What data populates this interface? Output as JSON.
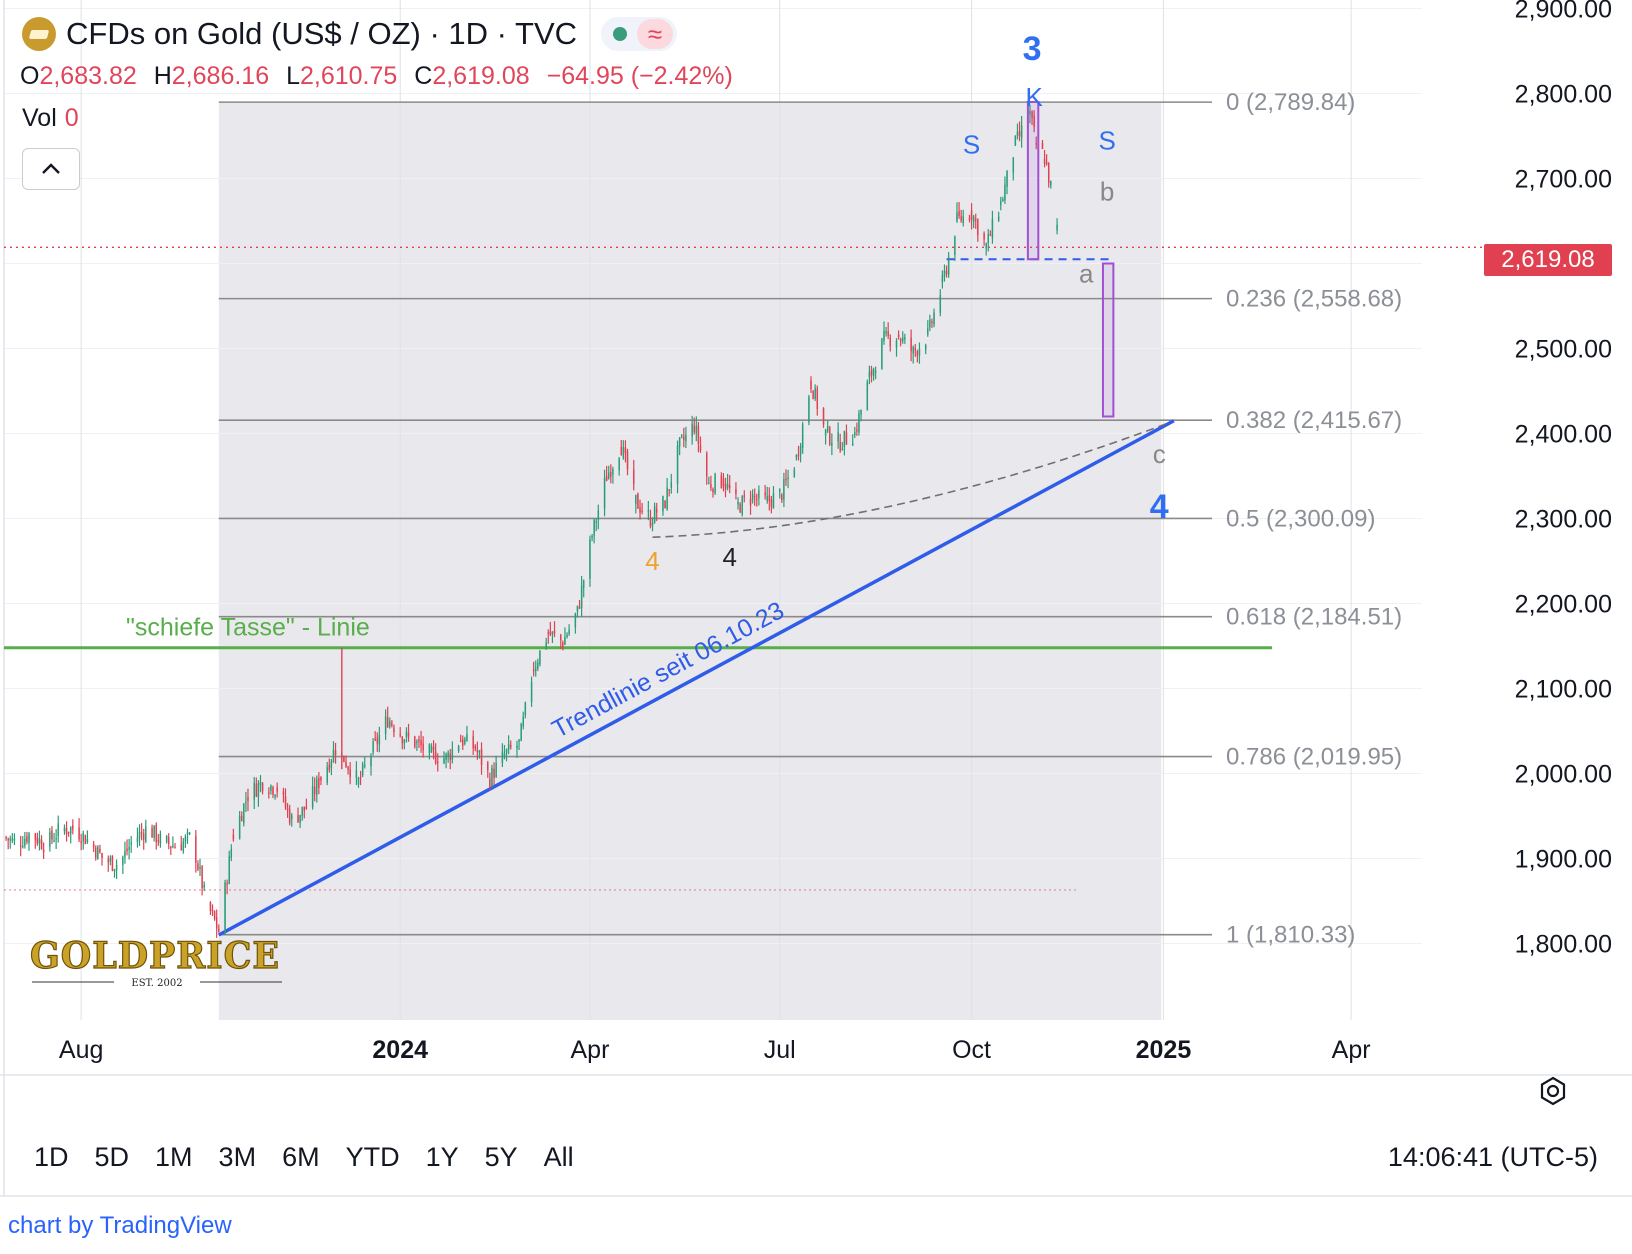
{
  "header": {
    "title": "CFDs on Gold (US$ / OZ) · 1D · TVC",
    "ohlc": [
      {
        "key": "O",
        "value": "2,683.82"
      },
      {
        "key": "H",
        "value": "2,686.16"
      },
      {
        "key": "L",
        "value": "2,610.75"
      },
      {
        "key": "C",
        "value": "2,619.08"
      }
    ],
    "change": "−64.95 (−2.42%)",
    "vol_label": "Vol",
    "vol_value": "0",
    "icons": [
      "gold-logo-icon",
      "status-dot-icon",
      "wave-icon",
      "chevron-up-icon"
    ]
  },
  "price_tag": "2,619.08",
  "ranges": [
    "1D",
    "5D",
    "1M",
    "3M",
    "6M",
    "YTD",
    "1Y",
    "5Y",
    "All"
  ],
  "clock": "14:06:41 (UTC-5)",
  "credit": {
    "prefix": "chart by ",
    "brand": "TradingView"
  },
  "watermark": {
    "text": "GOLDPRICE",
    "est": "EST. 2002"
  },
  "colors": {
    "down": "#e0404f",
    "up": "#2a9d78",
    "trend": "#2f5ce8",
    "green_line": "#58ae4a",
    "wave_label": "#2f6ff0",
    "fib": "#888888",
    "box": "#a24fd0"
  },
  "chart_data": {
    "type": "candlestick",
    "symbol": "CFDs on Gold (US$ / OZ)",
    "interval": "1D",
    "y_axis": {
      "ticks": [
        1800,
        1900,
        2000,
        2100,
        2200,
        2300,
        2400,
        2500,
        2600,
        2700,
        2800,
        2900
      ],
      "tick_labels": [
        "1,800.00",
        "1,900.00",
        "2,000.00",
        "2,100.00",
        "2,200.00",
        "2,300.00",
        "2,400.00",
        "2,500.00",
        "2,600.00",
        "2,700.00",
        "2,800.00",
        "2,900.00"
      ],
      "ylim": [
        1710,
        2910
      ]
    },
    "x_axis": {
      "range": [
        "2023-06-25",
        "2025-05-05"
      ],
      "labels": [
        {
          "date": "2023-08-01",
          "text": "Aug",
          "bold": false
        },
        {
          "date": "2024-01-01",
          "text": "2024",
          "bold": true
        },
        {
          "date": "2024-04-01",
          "text": "Apr",
          "bold": false
        },
        {
          "date": "2024-07-01",
          "text": "Jul",
          "bold": false
        },
        {
          "date": "2024-10-01",
          "text": "Oct",
          "bold": false
        },
        {
          "date": "2025-01-01",
          "text": "2025",
          "bold": true
        },
        {
          "date": "2025-04-01",
          "text": "Apr",
          "bold": false
        }
      ]
    },
    "last_price": 2619.08,
    "fib_retracement": {
      "from_date": "2023-10-06",
      "to_date": "2024-12-31",
      "levels": [
        {
          "ratio": "0",
          "price": 2789.84,
          "label": "0 (2,789.84)"
        },
        {
          "ratio": "0.236",
          "price": 2558.68,
          "label": "0.236 (2,558.68)"
        },
        {
          "ratio": "0.382",
          "price": 2415.67,
          "label": "0.382 (2,415.67)"
        },
        {
          "ratio": "0.5",
          "price": 2300.09,
          "label": "0.5 (2,300.09)"
        },
        {
          "ratio": "0.618",
          "price": 2184.51,
          "label": "0.618 (2,184.51)"
        },
        {
          "ratio": "0.786",
          "price": 2019.95,
          "label": "0.786 (2,019.95)"
        },
        {
          "ratio": "1",
          "price": 1810.33,
          "label": "1 (1,810.33)"
        }
      ]
    },
    "lines": [
      {
        "name": "green_horizontal",
        "price": 2148,
        "from": "2023-06-25",
        "to": "2024-12-31",
        "label": "\"schiefe Tasse\" -  Linie"
      },
      {
        "name": "trendline",
        "from": [
          "2023-10-06",
          1810
        ],
        "to": [
          "2025-01-06",
          2415
        ],
        "label": "Trendlinie seit 06.10.23"
      },
      {
        "name": "dashed_curve",
        "from": [
          "2024-05-01",
          2278
        ],
        "to": [
          "2025-01-03",
          2412
        ]
      },
      {
        "name": "blue_dashed",
        "price": 2605,
        "from": "2024-09-19",
        "to": "2024-12-08"
      },
      {
        "name": "dotted_low",
        "price": 1863,
        "from": "2023-06-25",
        "to": "2024-11-20"
      }
    ],
    "boxes": [
      {
        "from": "2024-10-28",
        "to": "2024-11-02",
        "low": 2605,
        "high": 2790
      },
      {
        "from": "2024-12-03",
        "to": "2024-12-08",
        "low": 2420,
        "high": 2600
      }
    ],
    "annotations": [
      {
        "text": "3",
        "date": "2024-10-30",
        "price": 2850,
        "style": "wave"
      },
      {
        "text": "K",
        "date": "2024-10-31",
        "price": 2796,
        "style": "wave_small"
      },
      {
        "text": "S",
        "date": "2024-10-01",
        "price": 2740,
        "style": "wave_small"
      },
      {
        "text": "S",
        "date": "2024-12-05",
        "price": 2745,
        "style": "wave_small"
      },
      {
        "text": "b",
        "date": "2024-12-05",
        "price": 2685,
        "style": "gray"
      },
      {
        "text": "a",
        "date": "2024-11-25",
        "price": 2588,
        "style": "gray"
      },
      {
        "text": "c",
        "date": "2024-12-30",
        "price": 2376,
        "style": "gray"
      },
      {
        "text": "4",
        "date": "2024-12-30",
        "price": 2311,
        "style": "wave"
      },
      {
        "text": "4",
        "date": "2024-05-01",
        "price": 2250,
        "style": "orange"
      },
      {
        "text": "4",
        "date": "2024-06-07",
        "price": 2255,
        "style": "black"
      }
    ],
    "series": [
      {
        "date": "2023-06-25",
        "close": 1925
      },
      {
        "date": "2023-07-01",
        "close": 1918
      },
      {
        "date": "2023-07-08",
        "close": 1930
      },
      {
        "date": "2023-07-15",
        "close": 1915
      },
      {
        "date": "2023-07-22",
        "close": 1935
      },
      {
        "date": "2023-07-29",
        "close": 1935
      },
      {
        "date": "2023-08-05",
        "close": 1920
      },
      {
        "date": "2023-08-12",
        "close": 1898
      },
      {
        "date": "2023-08-19",
        "close": 1893
      },
      {
        "date": "2023-08-26",
        "close": 1922
      },
      {
        "date": "2023-09-02",
        "close": 1936
      },
      {
        "date": "2023-09-09",
        "close": 1919
      },
      {
        "date": "2023-09-16",
        "close": 1915
      },
      {
        "date": "2023-09-23",
        "close": 1925
      },
      {
        "date": "2023-09-30",
        "close": 1848
      },
      {
        "date": "2023-10-06",
        "close": 1815
      },
      {
        "date": "2023-10-13",
        "close": 1928
      },
      {
        "date": "2023-10-20",
        "close": 1975
      },
      {
        "date": "2023-10-27",
        "close": 1990
      },
      {
        "date": "2023-11-03",
        "close": 1982
      },
      {
        "date": "2023-11-10",
        "close": 1945
      },
      {
        "date": "2023-11-17",
        "close": 1960
      },
      {
        "date": "2023-11-24",
        "close": 1995
      },
      {
        "date": "2023-12-01",
        "close": 2030
      },
      {
        "date": "2023-12-05",
        "close": 2018
      },
      {
        "date": "2023-12-12",
        "close": 1990
      },
      {
        "date": "2023-12-19",
        "close": 2028
      },
      {
        "date": "2023-12-26",
        "close": 2065
      },
      {
        "date": "2024-01-02",
        "close": 2045
      },
      {
        "date": "2024-01-09",
        "close": 2035
      },
      {
        "date": "2024-01-16",
        "close": 2022
      },
      {
        "date": "2024-01-23",
        "close": 2018
      },
      {
        "date": "2024-01-30",
        "close": 2040
      },
      {
        "date": "2024-02-06",
        "close": 2030
      },
      {
        "date": "2024-02-13",
        "close": 1995
      },
      {
        "date": "2024-02-20",
        "close": 2022
      },
      {
        "date": "2024-02-27",
        "close": 2035
      },
      {
        "date": "2024-03-05",
        "close": 2125
      },
      {
        "date": "2024-03-12",
        "close": 2165
      },
      {
        "date": "2024-03-19",
        "close": 2155
      },
      {
        "date": "2024-03-26",
        "close": 2190
      },
      {
        "date": "2024-04-02",
        "close": 2280
      },
      {
        "date": "2024-04-09",
        "close": 2350
      },
      {
        "date": "2024-04-16",
        "close": 2385
      },
      {
        "date": "2024-04-23",
        "close": 2320
      },
      {
        "date": "2024-04-30",
        "close": 2300
      },
      {
        "date": "2024-05-07",
        "close": 2320
      },
      {
        "date": "2024-05-14",
        "close": 2385
      },
      {
        "date": "2024-05-21",
        "close": 2410
      },
      {
        "date": "2024-05-28",
        "close": 2340
      },
      {
        "date": "2024-06-04",
        "close": 2345
      },
      {
        "date": "2024-06-11",
        "close": 2315
      },
      {
        "date": "2024-06-18",
        "close": 2325
      },
      {
        "date": "2024-06-25",
        "close": 2320
      },
      {
        "date": "2024-07-02",
        "close": 2330
      },
      {
        "date": "2024-07-09",
        "close": 2370
      },
      {
        "date": "2024-07-16",
        "close": 2460
      },
      {
        "date": "2024-07-23",
        "close": 2400
      },
      {
        "date": "2024-07-30",
        "close": 2390
      },
      {
        "date": "2024-08-06",
        "close": 2400
      },
      {
        "date": "2024-08-13",
        "close": 2465
      },
      {
        "date": "2024-08-20",
        "close": 2510
      },
      {
        "date": "2024-08-27",
        "close": 2515
      },
      {
        "date": "2024-09-03",
        "close": 2495
      },
      {
        "date": "2024-09-10",
        "close": 2515
      },
      {
        "date": "2024-09-17",
        "close": 2575
      },
      {
        "date": "2024-09-24",
        "close": 2650
      },
      {
        "date": "2024-10-01",
        "close": 2660
      },
      {
        "date": "2024-10-08",
        "close": 2620
      },
      {
        "date": "2024-10-15",
        "close": 2670
      },
      {
        "date": "2024-10-22",
        "close": 2740
      },
      {
        "date": "2024-10-29",
        "close": 2775
      },
      {
        "date": "2024-11-01",
        "close": 2740
      },
      {
        "date": "2024-11-05",
        "close": 2725
      },
      {
        "date": "2024-11-08",
        "close": 2690
      },
      {
        "date": "2024-11-11",
        "close": 2640
      },
      {
        "date": "2024-11-12",
        "close": 2619.08
      }
    ]
  }
}
